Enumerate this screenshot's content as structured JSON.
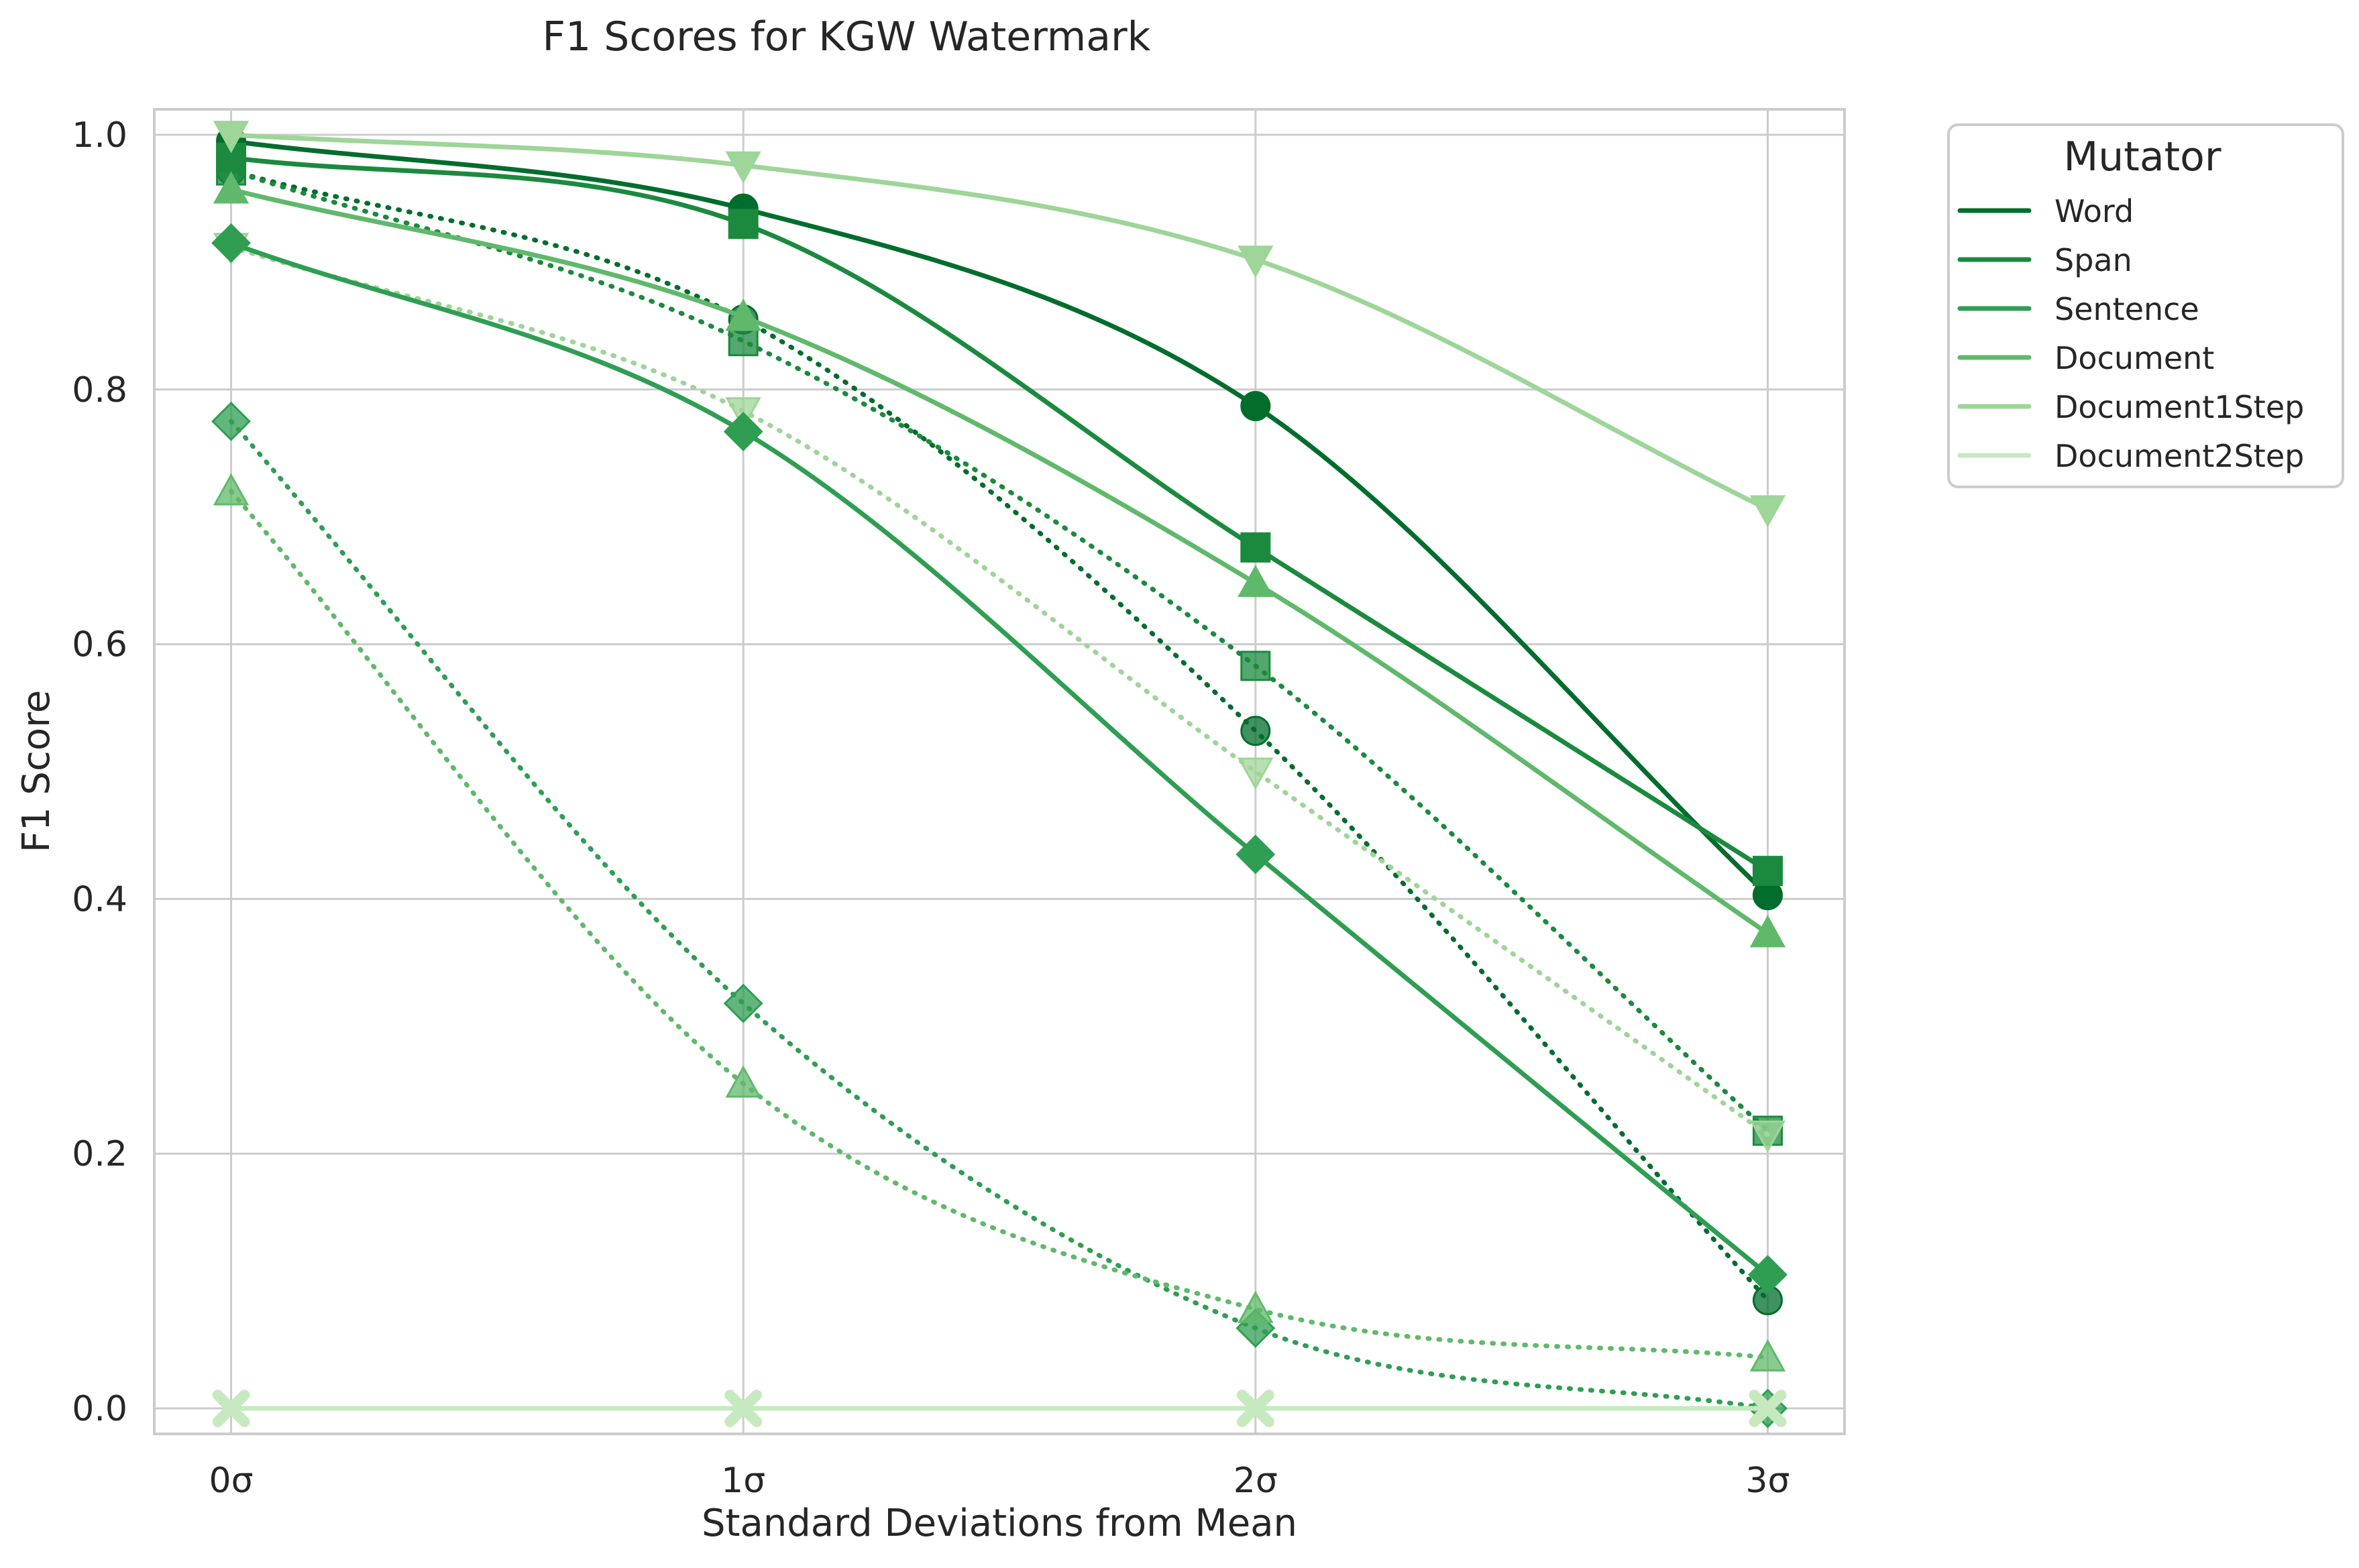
{
  "chart_data": {
    "type": "line",
    "title": "F1 Scores for KGW Watermark",
    "xlabel": "Standard Deviations from Mean",
    "ylabel": "F1 Score",
    "categories": [
      "0σ",
      "1σ",
      "2σ",
      "3σ"
    ],
    "x": [
      0,
      1,
      2,
      3
    ],
    "xlim": [
      -0.15,
      3.15
    ],
    "ylim": [
      -0.02,
      1.02
    ],
    "yticks": [
      "0.0",
      "0.2",
      "0.4",
      "0.6",
      "0.8",
      "1.0"
    ],
    "grid": true,
    "legend": {
      "title": "Mutator",
      "placement": "outside-top-right"
    },
    "series": [
      {
        "name": "Word",
        "color": "#006d2c",
        "marker": "circle",
        "style": "solid",
        "values": [
          0.995,
          0.942,
          0.787,
          0.403
        ]
      },
      {
        "name": "Span",
        "color": "#1b8a3e",
        "marker": "square",
        "style": "solid",
        "values": [
          0.982,
          0.93,
          0.676,
          0.422
        ]
      },
      {
        "name": "Sentence",
        "color": "#2f9e52",
        "marker": "diamond",
        "style": "solid",
        "values": [
          0.915,
          0.767,
          0.435,
          0.105
        ]
      },
      {
        "name": "Document",
        "color": "#60b96b",
        "marker": "triangle-up",
        "style": "solid",
        "values": [
          0.957,
          0.857,
          0.648,
          0.373
        ]
      },
      {
        "name": "Document1Step",
        "color": "#9ed598",
        "marker": "triangle-down",
        "style": "solid",
        "values": [
          1.0,
          0.976,
          0.902,
          0.706
        ]
      },
      {
        "name": "Document2Step",
        "color": "#c7e9c0",
        "marker": "x",
        "style": "solid",
        "values": [
          0.0,
          0.0,
          0.0,
          0.0
        ]
      },
      {
        "color": "#006d2c",
        "marker": "circle",
        "style": "dotted",
        "values": [
          0.972,
          0.855,
          0.532,
          0.085
        ]
      },
      {
        "color": "#1b8a3e",
        "marker": "square",
        "style": "dotted",
        "values": [
          0.972,
          0.838,
          0.583,
          0.218
        ]
      },
      {
        "color": "#2f9e52",
        "marker": "diamond",
        "style": "dotted",
        "values": [
          0.775,
          0.318,
          0.063,
          0.0
        ]
      },
      {
        "color": "#60b96b",
        "marker": "triangle-up",
        "style": "dotted",
        "values": [
          0.72,
          0.255,
          0.078,
          0.04
        ]
      },
      {
        "color": "#9ed598",
        "marker": "triangle-down",
        "style": "dotted",
        "values": [
          0.912,
          0.783,
          0.5,
          0.215
        ]
      }
    ]
  }
}
